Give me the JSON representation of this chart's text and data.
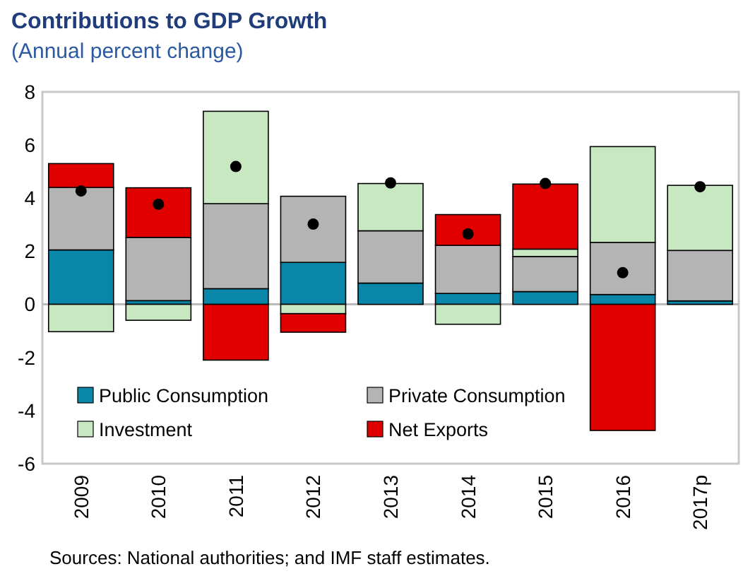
{
  "chart_data": {
    "type": "bar",
    "title": "Contributions to GDP Growth",
    "subtitle": "(Annual percent change)",
    "stacked": true,
    "categories": [
      "2009",
      "2010",
      "2011",
      "2012",
      "2013",
      "2014",
      "2015",
      "2016",
      "2017p"
    ],
    "series": [
      {
        "name": "Public Consumption",
        "color": "#0a87a8",
        "values": [
          2.05,
          0.14,
          0.59,
          1.58,
          0.8,
          0.41,
          0.48,
          0.37,
          0.13
        ]
      },
      {
        "name": "Private Consumption",
        "color": "#b4b4b4",
        "values": [
          2.35,
          2.38,
          3.2,
          2.49,
          1.97,
          1.81,
          1.32,
          1.96,
          1.9
        ]
      },
      {
        "name": "Investment",
        "color": "#c8e8c2",
        "values": [
          -1.03,
          -0.6,
          3.48,
          -0.35,
          1.78,
          -0.75,
          0.28,
          3.61,
          2.45
        ]
      },
      {
        "name": "Net Exports",
        "color": "#e00000",
        "values": [
          0.9,
          1.87,
          -2.1,
          -0.7,
          0,
          1.16,
          2.45,
          -4.75,
          0
        ]
      },
      {
        "type": "scatter",
        "color": "#000000",
        "values": [
          4.27,
          3.77,
          5.19,
          3.02,
          4.57,
          2.65,
          4.55,
          1.19,
          4.43
        ]
      }
    ],
    "ylim": [
      -6,
      8
    ],
    "yticks": [
      -6,
      -4,
      -2,
      0,
      2,
      4,
      6,
      8
    ],
    "legend": "bottom",
    "marker": "circle",
    "annotations": [
      "Sources: National authorities; and IMF staff estimates."
    ]
  }
}
